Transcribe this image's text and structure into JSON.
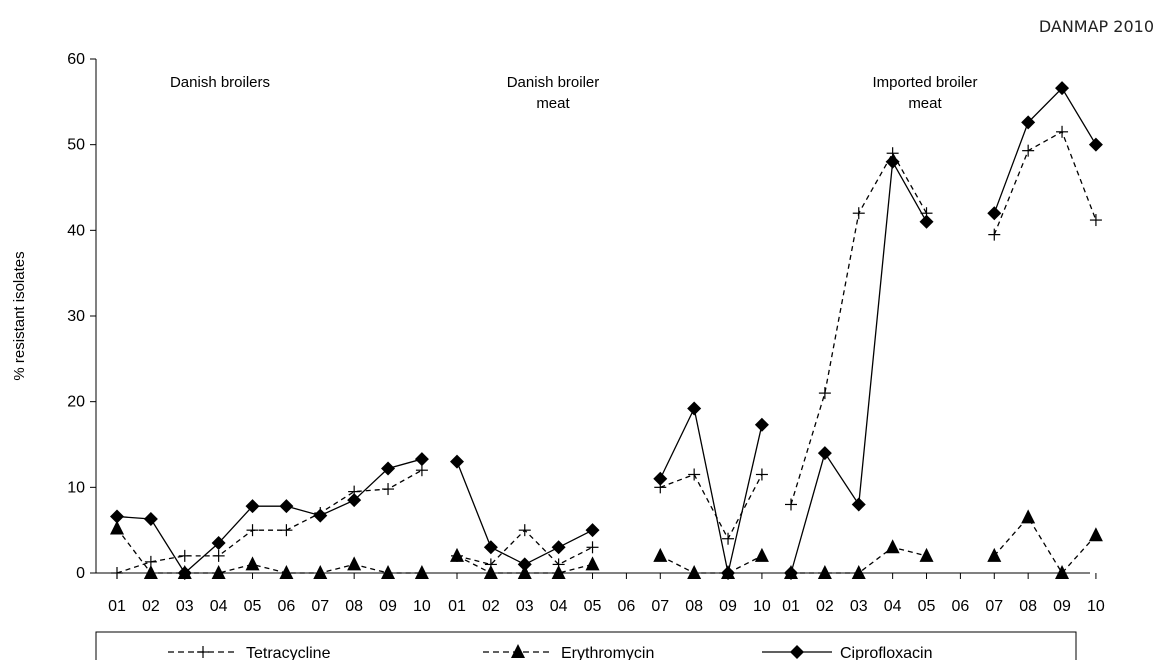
{
  "header": {
    "corner_label": "DANMAP 2010"
  },
  "chart_data": {
    "type": "line",
    "ylabel": "% resistant isolates",
    "ylim": [
      0,
      60
    ],
    "yticks": [
      0,
      10,
      20,
      30,
      40,
      50,
      60
    ],
    "groups": [
      {
        "label_lines": [
          "Danish broilers"
        ],
        "categories": [
          "01",
          "02",
          "03",
          "04",
          "05",
          "06",
          "07",
          "08",
          "09",
          "10"
        ]
      },
      {
        "label_lines": [
          "Danish broiler",
          "meat"
        ],
        "categories": [
          "01",
          "02",
          "03",
          "04",
          "05",
          "06",
          "07",
          "08",
          "09",
          "10"
        ]
      },
      {
        "label_lines": [
          "Imported broiler",
          "meat"
        ],
        "categories": [
          "01",
          "02",
          "03",
          "04",
          "05",
          "06",
          "07",
          "08",
          "09",
          "10"
        ]
      }
    ],
    "series": [
      {
        "name": "Tetracycline",
        "marker": "plus",
        "dash": "dashed",
        "values": [
          [
            0,
            1.3,
            2,
            2,
            5,
            5,
            7,
            9.5,
            9.8,
            12
          ],
          [
            2,
            1,
            5,
            1,
            3,
            null,
            10,
            11.5,
            4,
            11.5
          ],
          [
            8,
            21,
            42,
            49,
            42,
            null,
            39.5,
            49.3,
            51.5,
            41.2
          ]
        ]
      },
      {
        "name": "Erythromycin",
        "marker": "triangle",
        "dash": "dashed",
        "values": [
          [
            5.2,
            0,
            0,
            0,
            1,
            0,
            0,
            1,
            0,
            0
          ],
          [
            2,
            0,
            0,
            0,
            1,
            null,
            2,
            0,
            0,
            2
          ],
          [
            0,
            0,
            0,
            3,
            2,
            null,
            2,
            6.5,
            0,
            4.4
          ]
        ]
      },
      {
        "name": "Ciprofloxacin",
        "marker": "diamond",
        "dash": "solid",
        "values": [
          [
            6.6,
            6.3,
            0,
            3.5,
            7.8,
            7.8,
            6.7,
            8.5,
            12.2,
            13.3
          ],
          [
            13,
            3,
            1,
            3,
            5,
            null,
            11,
            19.2,
            0,
            17.3
          ],
          [
            0,
            14,
            8,
            48,
            41,
            null,
            42,
            52.6,
            56.6,
            50
          ]
        ]
      }
    ],
    "legend": {
      "placement": "bottom",
      "border": true
    },
    "grid": false
  }
}
